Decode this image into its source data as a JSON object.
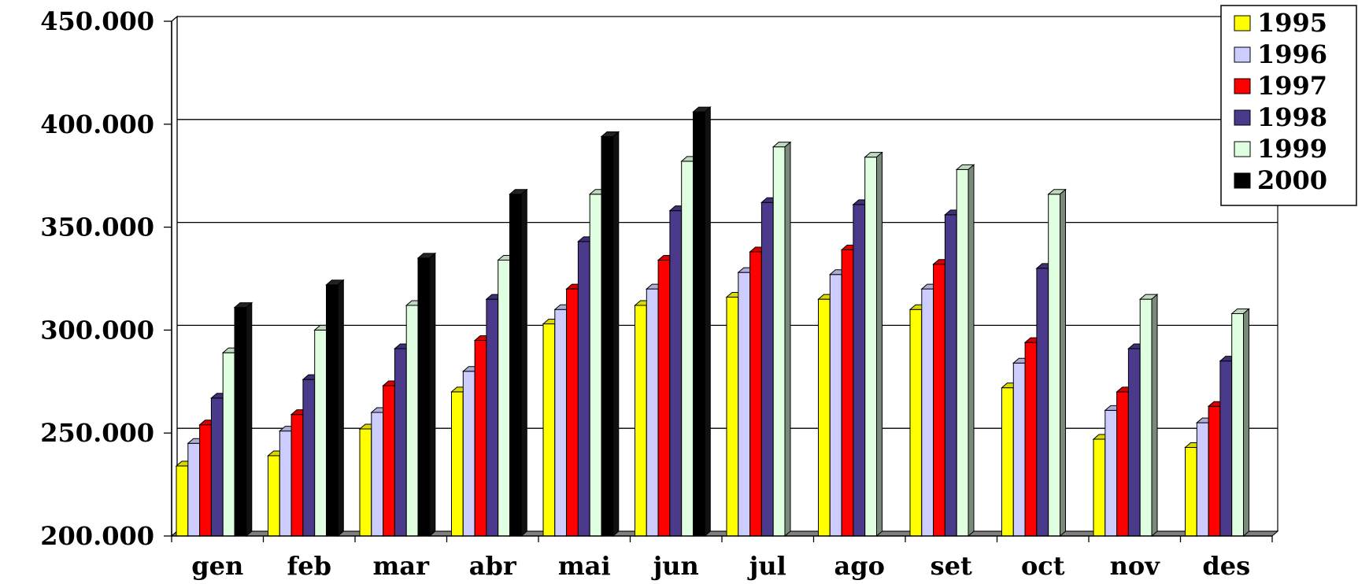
{
  "chart_data": {
    "type": "bar",
    "title": "",
    "xlabel": "",
    "ylabel": "",
    "categories": [
      "gen",
      "feb",
      "mar",
      "abr",
      "mai",
      "jun",
      "jul",
      "ago",
      "set",
      "oct",
      "nov",
      "des"
    ],
    "y_tick_labels": [
      "200.000",
      "250.000",
      "300.000",
      "350.000",
      "400.000",
      "450.000"
    ],
    "y_ticks": [
      200000,
      250000,
      300000,
      350000,
      400000,
      450000
    ],
    "ylim": [
      200000,
      450000
    ],
    "grid": true,
    "legend_position": "top-right",
    "series": [
      {
        "name": "1995",
        "color": "#FFFF00",
        "values": [
          234000,
          239000,
          252000,
          270000,
          303000,
          312000,
          316000,
          315000,
          310000,
          272000,
          247000,
          243000
        ]
      },
      {
        "name": "1996",
        "color": "#CCCCFF",
        "values": [
          245000,
          251000,
          260000,
          280000,
          310000,
          320000,
          328000,
          327000,
          320000,
          284000,
          261000,
          255000
        ]
      },
      {
        "name": "1997",
        "color": "#FF0000",
        "values": [
          254000,
          259000,
          273000,
          295000,
          320000,
          334000,
          338000,
          339000,
          332000,
          294000,
          270000,
          263000
        ]
      },
      {
        "name": "1998",
        "color": "#4B3A8C",
        "values": [
          267000,
          276000,
          291000,
          315000,
          343000,
          358000,
          362000,
          361000,
          356000,
          330000,
          291000,
          285000
        ]
      },
      {
        "name": "1999",
        "color": "#E0FFE0",
        "values": [
          289000,
          300000,
          312000,
          334000,
          366000,
          382000,
          389000,
          384000,
          378000,
          366000,
          315000,
          308000
        ]
      },
      {
        "name": "2000",
        "color": "#000000",
        "values": [
          311000,
          322000,
          335000,
          366000,
          394000,
          406000,
          null,
          null,
          null,
          null,
          null,
          null
        ]
      }
    ]
  }
}
